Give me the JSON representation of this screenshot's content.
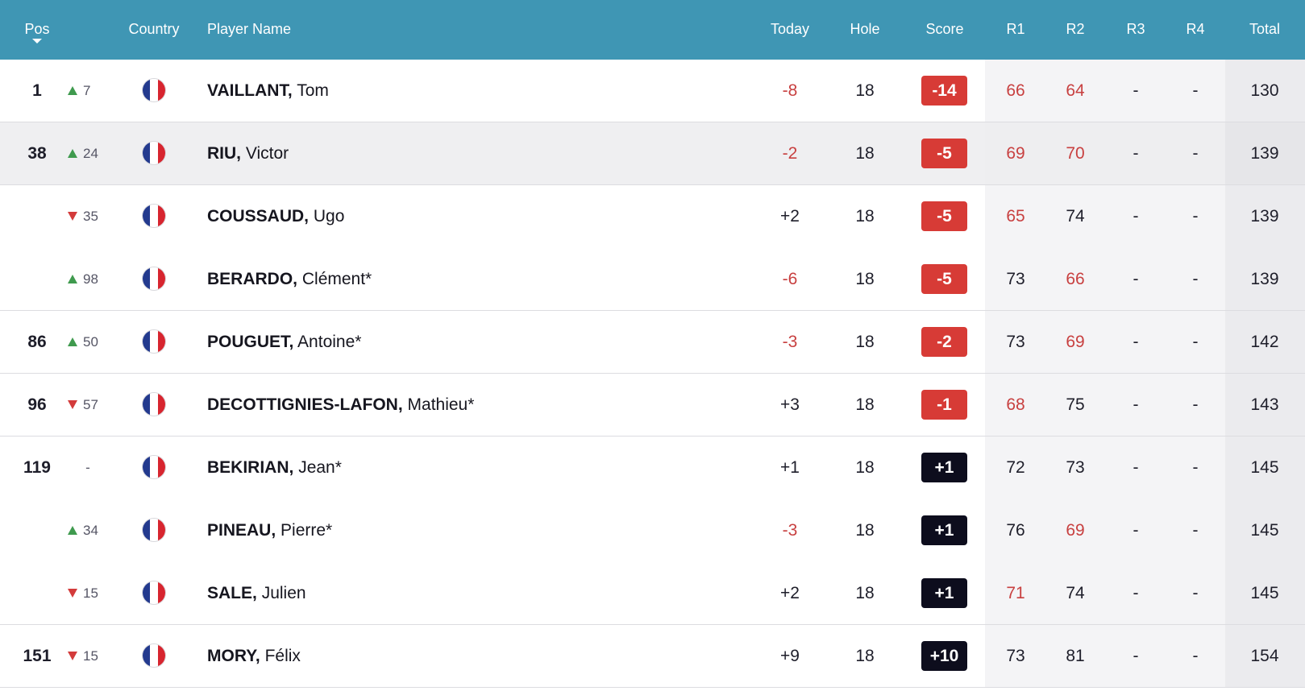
{
  "header": {
    "pos": "Pos",
    "country": "Country",
    "player_name": "Player Name",
    "today": "Today",
    "hole": "Hole",
    "score": "Score",
    "r1": "R1",
    "r2": "R2",
    "r3": "R3",
    "r4": "R4",
    "total": "Total",
    "sort_icon": "caret-down-icon"
  },
  "colors": {
    "header_bg": "#3f96b4",
    "under_par_badge": "#d73b36",
    "over_par_badge": "#0d0d1d",
    "under_par_text": "#c84040",
    "move_up": "#3f9a4e",
    "move_down": "#d33b3b"
  },
  "rows": [
    {
      "pos": "1",
      "move_dir": "up",
      "move": "7",
      "country": "France",
      "last": "VAILLANT,",
      "first": "Tom",
      "today": "-8",
      "hole": "18",
      "score": "-14",
      "r1": "66",
      "r2": "64",
      "r3": "-",
      "r4": "-",
      "total": "130"
    },
    {
      "pos": "38",
      "move_dir": "up",
      "move": "24",
      "country": "France",
      "last": "RIU,",
      "first": "Victor",
      "today": "-2",
      "hole": "18",
      "score": "-5",
      "r1": "69",
      "r2": "70",
      "r3": "-",
      "r4": "-",
      "total": "139"
    },
    {
      "pos": "",
      "move_dir": "down",
      "move": "35",
      "country": "France",
      "last": "COUSSAUD,",
      "first": "Ugo",
      "today": "+2",
      "hole": "18",
      "score": "-5",
      "r1": "65",
      "r2": "74",
      "r3": "-",
      "r4": "-",
      "total": "139"
    },
    {
      "pos": "",
      "move_dir": "up",
      "move": "98",
      "country": "France",
      "last": "BERARDO,",
      "first": "Clément*",
      "today": "-6",
      "hole": "18",
      "score": "-5",
      "r1": "73",
      "r2": "66",
      "r3": "-",
      "r4": "-",
      "total": "139"
    },
    {
      "pos": "86",
      "move_dir": "up",
      "move": "50",
      "country": "France",
      "last": "POUGUET,",
      "first": "Antoine*",
      "today": "-3",
      "hole": "18",
      "score": "-2",
      "r1": "73",
      "r2": "69",
      "r3": "-",
      "r4": "-",
      "total": "142"
    },
    {
      "pos": "96",
      "move_dir": "down",
      "move": "57",
      "country": "France",
      "last": "DECOTTIGNIES-LAFON,",
      "first": "Mathieu*",
      "today": "+3",
      "hole": "18",
      "score": "-1",
      "r1": "68",
      "r2": "75",
      "r3": "-",
      "r4": "-",
      "total": "143"
    },
    {
      "pos": "119",
      "move_dir": "none",
      "move": "-",
      "country": "France",
      "last": "BEKIRIAN,",
      "first": "Jean*",
      "today": "+1",
      "hole": "18",
      "score": "+1",
      "r1": "72",
      "r2": "73",
      "r3": "-",
      "r4": "-",
      "total": "145"
    },
    {
      "pos": "",
      "move_dir": "up",
      "move": "34",
      "country": "France",
      "last": "PINEAU,",
      "first": "Pierre*",
      "today": "-3",
      "hole": "18",
      "score": "+1",
      "r1": "76",
      "r2": "69",
      "r3": "-",
      "r4": "-",
      "total": "145"
    },
    {
      "pos": "",
      "move_dir": "down",
      "move": "15",
      "country": "France",
      "last": "SALE,",
      "first": "Julien",
      "today": "+2",
      "hole": "18",
      "score": "+1",
      "r1": "71",
      "r2": "74",
      "r3": "-",
      "r4": "-",
      "total": "145"
    },
    {
      "pos": "151",
      "move_dir": "down",
      "move": "15",
      "country": "France",
      "last": "MORY,",
      "first": "Félix",
      "today": "+9",
      "hole": "18",
      "score": "+10",
      "r1": "73",
      "r2": "81",
      "r3": "-",
      "r4": "-",
      "total": "154"
    }
  ]
}
